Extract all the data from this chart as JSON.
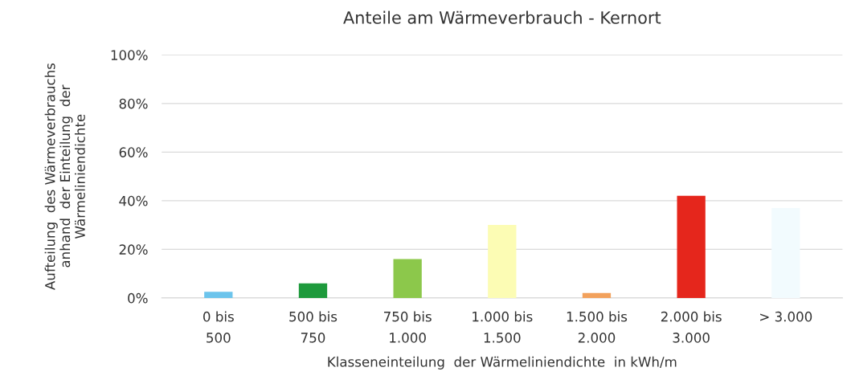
{
  "chart_data": {
    "type": "bar",
    "title": "Anteile am Wärmeverbrauch - Kernort",
    "xlabel": "Klasseneinteilung  der Wärmeliniendichte  in kWh/m",
    "ylabel": "Aufteilung  des Wärmeverbrauchs\nanhand  der Einteilung  der\nWärmeliniendichte",
    "categories": [
      "0 bis\n500",
      "500 bis\n750",
      "750 bis\n1.000",
      "1.000 bis\n1.500",
      "1.500 bis\n2.000",
      "2.000 bis\n3.000",
      "> 3.000"
    ],
    "values": [
      2.5,
      6,
      16,
      30,
      2,
      42,
      37
    ],
    "colors": [
      "#6cc4ec",
      "#1e9a3c",
      "#8cc84b",
      "#fcfcb4",
      "#f2a15c",
      "#e5261c",
      "#f2fbfe"
    ],
    "ylim": [
      0,
      100
    ],
    "yticks": [
      {
        "value": 0,
        "label": "0%"
      },
      {
        "value": 20,
        "label": "20%"
      },
      {
        "value": 40,
        "label": "40%"
      },
      {
        "value": 60,
        "label": "60%"
      },
      {
        "value": 80,
        "label": "80%"
      },
      {
        "value": 100,
        "label": "100%"
      }
    ],
    "grid": "y",
    "legend": false
  }
}
